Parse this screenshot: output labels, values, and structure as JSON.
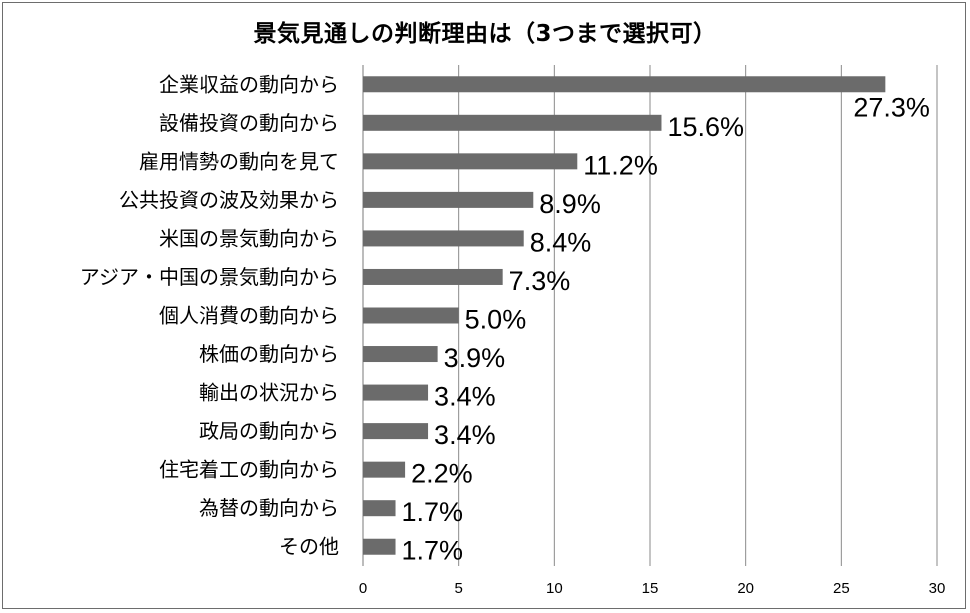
{
  "chart_data": {
    "type": "bar",
    "orientation": "horizontal",
    "title": "景気見通しの判断理由は（3つまで選択可）",
    "categories": [
      "企業収益の動向から",
      "設備投資の動向から",
      "雇用情勢の動向を見て",
      "公共投資の波及効果から",
      "米国の景気動向から",
      "アジア・中国の景気動向から",
      "個人消費の動向から",
      "株価の動向から",
      "輸出の状況から",
      "政局の動向から",
      "住宅着工の動向から",
      "為替の動向から",
      "その他"
    ],
    "values": [
      27.3,
      15.6,
      11.2,
      8.9,
      8.4,
      7.3,
      5.0,
      3.9,
      3.4,
      3.4,
      2.2,
      1.7,
      1.7
    ],
    "value_labels": [
      "27.3%",
      "15.6%",
      "11.2%",
      "8.9%",
      "8.4%",
      "7.3%",
      "5.0%",
      "3.9%",
      "3.4%",
      "3.4%",
      "2.2%",
      "1.7%",
      "1.7%"
    ],
    "xlim": [
      0,
      30
    ],
    "xticks": [
      "0",
      "5",
      "10",
      "15",
      "20",
      "25",
      "30"
    ],
    "grid": true,
    "bar_color": "#6b6b6b",
    "grid_color": "#8a8a8a"
  }
}
